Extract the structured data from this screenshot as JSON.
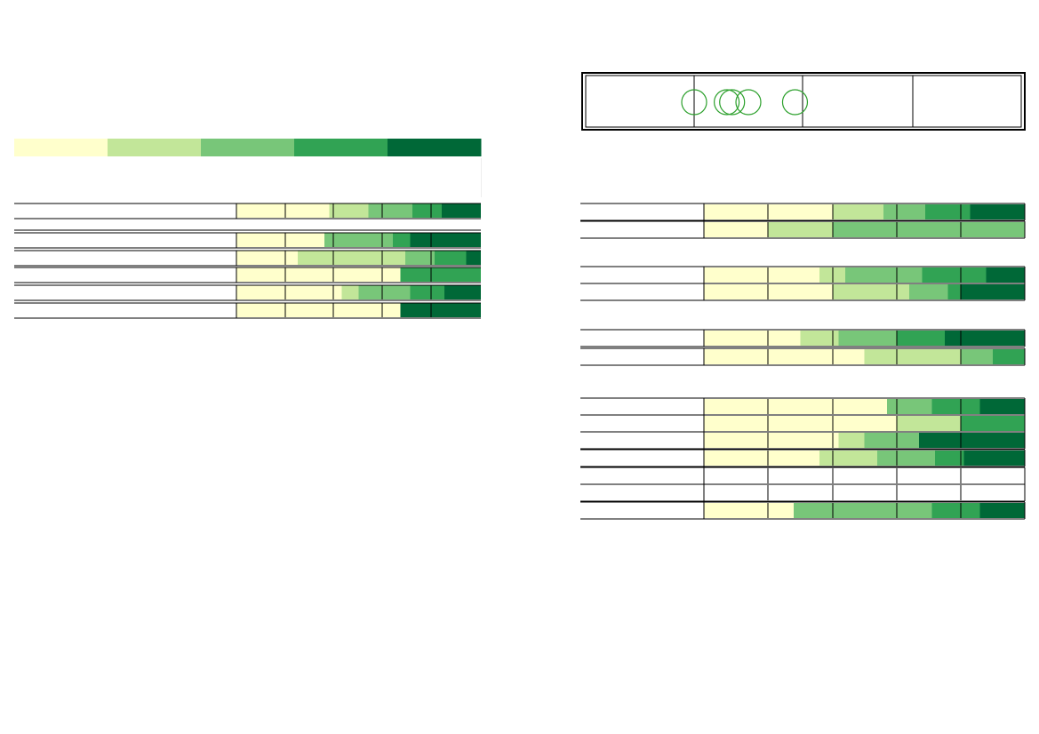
{
  "palette": {
    "c1": "#ffffcc",
    "c2": "#c2e699",
    "c3": "#78c679",
    "c4": "#31a354",
    "c5": "#006837",
    "line": "#000000",
    "marker": "#2ca02c"
  },
  "legend": {
    "swatches": [
      "c1",
      "c2",
      "c3",
      "c4",
      "c5"
    ]
  },
  "chart_data": [
    {
      "type": "bar",
      "orientation": "horizontal-stacked-percent",
      "title": "",
      "xlabel": "",
      "ylabel": "",
      "xlim": [
        0,
        100
      ],
      "grid": true,
      "legend_placement": "top",
      "rows": [
        {
          "segments": [
            {
              "c": "c1",
              "v": 38
            },
            {
              "c": "c2",
              "v": 16
            },
            {
              "c": "c3",
              "v": 18
            },
            {
              "c": "c4",
              "v": 12
            },
            {
              "c": "c5",
              "v": 16
            }
          ]
        },
        {
          "segments": []
        },
        {
          "segments": [
            {
              "c": "c1",
              "v": 36
            },
            {
              "c": "c3",
              "v": 28
            },
            {
              "c": "c4",
              "v": 7
            },
            {
              "c": "c5",
              "v": 29
            }
          ]
        },
        {
          "segments": [
            {
              "c": "c1",
              "v": 25
            },
            {
              "c": "c2",
              "v": 44
            },
            {
              "c": "c3",
              "v": 12
            },
            {
              "c": "c4",
              "v": 13
            },
            {
              "c": "c5",
              "v": 6
            }
          ]
        },
        {
          "segments": [
            {
              "c": "c1",
              "v": 67
            },
            {
              "c": "c4",
              "v": 33
            }
          ]
        },
        {
          "segments": [
            {
              "c": "c1",
              "v": 43
            },
            {
              "c": "c2",
              "v": 7
            },
            {
              "c": "c3",
              "v": 21
            },
            {
              "c": "c4",
              "v": 14
            },
            {
              "c": "c5",
              "v": 15
            }
          ]
        },
        {
          "segments": [
            {
              "c": "c1",
              "v": 67
            },
            {
              "c": "c5",
              "v": 33
            }
          ]
        }
      ]
    },
    {
      "type": "table",
      "columns": 4,
      "markers": [
        {
          "column": 1,
          "value": 0.0
        },
        {
          "column": 1,
          "value": 0.3
        },
        {
          "column": 1,
          "value": 0.35
        },
        {
          "column": 1,
          "value": 0.5
        },
        {
          "column": 1,
          "value": 0.93
        }
      ]
    },
    {
      "type": "bar",
      "orientation": "horizontal-stacked-percent",
      "title": "",
      "xlabel": "",
      "ylabel": "",
      "xlim": [
        0,
        100
      ],
      "grid": true,
      "groups": [
        {
          "rows": [
            {
              "segments": [
                {
                  "c": "c1",
                  "v": 40
                },
                {
                  "c": "c2",
                  "v": 16
                },
                {
                  "c": "c3",
                  "v": 13
                },
                {
                  "c": "c4",
                  "v": 14
                },
                {
                  "c": "c5",
                  "v": 17
                }
              ]
            },
            {
              "segments": [
                {
                  "c": "c1",
                  "v": 20
                },
                {
                  "c": "c2",
                  "v": 20
                },
                {
                  "c": "c3",
                  "v": 60
                }
              ]
            }
          ]
        },
        {
          "rows": [
            {
              "segments": [
                {
                  "c": "c1",
                  "v": 36
                },
                {
                  "c": "c2",
                  "v": 8
                },
                {
                  "c": "c3",
                  "v": 24
                },
                {
                  "c": "c4",
                  "v": 20
                },
                {
                  "c": "c5",
                  "v": 12
                }
              ]
            },
            {
              "segments": [
                {
                  "c": "c1",
                  "v": 40
                },
                {
                  "c": "c2",
                  "v": 24
                },
                {
                  "c": "c3",
                  "v": 12
                },
                {
                  "c": "c4",
                  "v": 4
                },
                {
                  "c": "c5",
                  "v": 20
                }
              ]
            }
          ]
        },
        {
          "rows": [
            {
              "segments": [
                {
                  "c": "c1",
                  "v": 30
                },
                {
                  "c": "c2",
                  "v": 12
                },
                {
                  "c": "c3",
                  "v": 18
                },
                {
                  "c": "c4",
                  "v": 15
                },
                {
                  "c": "c5",
                  "v": 25
                }
              ]
            },
            {
              "segments": [
                {
                  "c": "c1",
                  "v": 50
                },
                {
                  "c": "c2",
                  "v": 30
                },
                {
                  "c": "c3",
                  "v": 10
                },
                {
                  "c": "c4",
                  "v": 10
                }
              ]
            }
          ]
        },
        {
          "rows": [
            {
              "segments": [
                {
                  "c": "c1",
                  "v": 57
                },
                {
                  "c": "c3",
                  "v": 14
                },
                {
                  "c": "c4",
                  "v": 15
                },
                {
                  "c": "c5",
                  "v": 14
                }
              ]
            },
            {
              "segments": [
                {
                  "c": "c1",
                  "v": 60
                },
                {
                  "c": "c2",
                  "v": 20
                },
                {
                  "c": "c4",
                  "v": 20
                }
              ]
            },
            {
              "segments": [
                {
                  "c": "c1",
                  "v": 42
                },
                {
                  "c": "c2",
                  "v": 8
                },
                {
                  "c": "c3",
                  "v": 17
                },
                {
                  "c": "c5",
                  "v": 33
                }
              ]
            },
            {
              "segments": [
                {
                  "c": "c1",
                  "v": 36
                },
                {
                  "c": "c2",
                  "v": 18
                },
                {
                  "c": "c3",
                  "v": 18
                },
                {
                  "c": "c4",
                  "v": 9
                },
                {
                  "c": "c5",
                  "v": 19
                }
              ]
            },
            {
              "segments": []
            },
            {
              "segments": []
            },
            {
              "segments": [
                {
                  "c": "c1",
                  "v": 28
                },
                {
                  "c": "c3",
                  "v": 43
                },
                {
                  "c": "c4",
                  "v": 15
                },
                {
                  "c": "c5",
                  "v": 14
                }
              ]
            }
          ]
        }
      ]
    }
  ]
}
